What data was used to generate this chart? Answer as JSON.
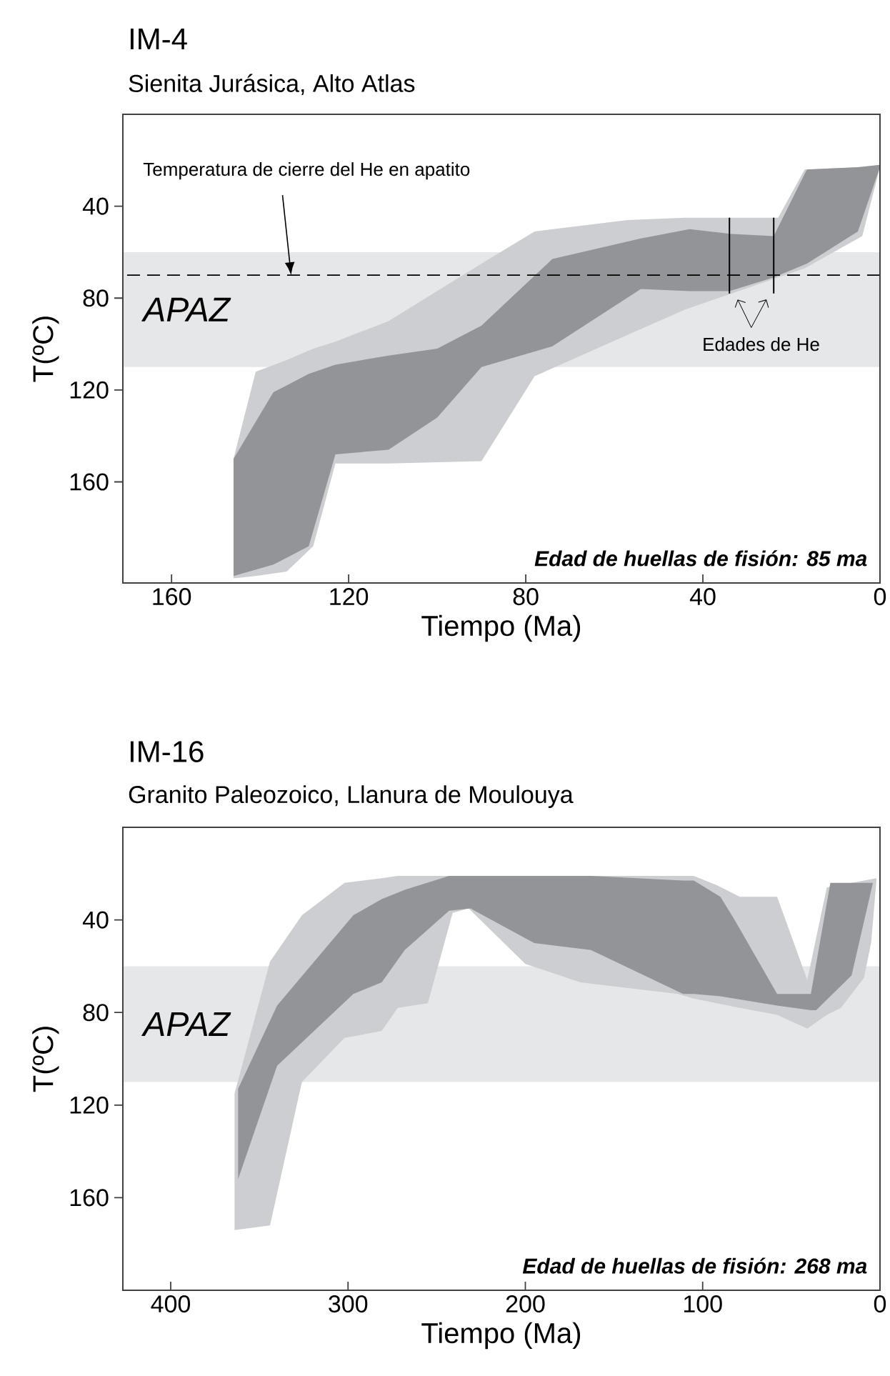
{
  "chart_data": [
    {
      "type": "area",
      "title": "IM-4",
      "subtitle": "Sienita Jurásica, Alto Atlas",
      "xlabel": "Tiempo (Ma)",
      "ylabel": "T(ºC)",
      "xlim": [
        171,
        0
      ],
      "ylim": [
        204,
        0
      ],
      "xticks": [
        160,
        120,
        80,
        40,
        0
      ],
      "yticks": [
        40,
        80,
        120,
        160
      ],
      "bands": [
        {
          "axis": "y",
          "from": 60,
          "to": 110,
          "label": "APAZ",
          "color": "#e6e7e8"
        }
      ],
      "ref_lines": [
        {
          "axis": "y",
          "value": 70,
          "color": "#000000",
          "line_style": "dashed"
        }
      ],
      "annotations": [
        {
          "text": "Temperatura de cierre del He en apatito",
          "x": 133,
          "y": 70
        },
        "Edades de He",
        "Edad de huellas de fisión: 85 ma"
      ],
      "series": [
        {
          "color": "#cdced1",
          "x": [
            146,
            141,
            134,
            128,
            123,
            111,
            90,
            78,
            57,
            44,
            23,
            17,
            4,
            0,
            0,
            4,
            17,
            23,
            44,
            57,
            78,
            90,
            111,
            123,
            128,
            134,
            141,
            146
          ],
          "values": [
            150,
            112,
            107,
            102,
            99,
            90,
            65,
            51,
            46,
            45,
            45,
            24,
            23,
            22,
            23,
            53,
            67,
            71,
            85,
            96,
            114,
            151,
            152,
            152,
            188,
            199,
            201,
            202
          ]
        },
        {
          "color": "#939497",
          "x": [
            146,
            137,
            134,
            129,
            123,
            111,
            100,
            90,
            74,
            54,
            43,
            34,
            24,
            16.5,
            5,
            0,
            0,
            5,
            16.5,
            24,
            34,
            43,
            54,
            74,
            90,
            100,
            111,
            123,
            129,
            134,
            137,
            146
          ],
          "values": [
            150,
            121,
            118,
            113,
            109,
            105,
            102,
            92,
            63,
            54,
            50,
            52,
            53,
            24,
            23,
            22,
            23,
            51,
            65,
            71,
            77,
            77,
            76,
            101,
            110,
            132,
            146,
            148,
            188,
            193,
            196,
            201
          ]
        },
        {
          "type": "line",
          "color": "#000000",
          "x": [
            34,
            34
          ],
          "values": [
            45,
            78
          ]
        },
        {
          "type": "line",
          "color": "#000000",
          "x": [
            24,
            24
          ],
          "values": [
            45,
            78
          ]
        }
      ]
    },
    {
      "type": "area",
      "title": "IM-16",
      "subtitle": "Granito Paleozoico, Llanura de Moulouya",
      "xlabel": "Tiempo (Ma)",
      "ylabel": "T(ºC)",
      "xlim": [
        427,
        0
      ],
      "ylim": [
        200,
        0
      ],
      "xticks": [
        400,
        300,
        200,
        100,
        0
      ],
      "yticks": [
        40,
        80,
        120,
        160
      ],
      "bands": [
        {
          "axis": "y",
          "from": 60,
          "to": 110,
          "label": "APAZ",
          "color": "#e6e7e8"
        }
      ],
      "annotations": [
        "Edad de huellas de fisión: 268 ma"
      ],
      "series": [
        {
          "color": "#cdced1",
          "x": [
            364,
            344,
            326,
            302,
            281,
            272,
            256,
            115,
            105,
            92,
            79,
            58,
            41,
            30,
            2,
            2,
            5,
            9,
            22,
            30,
            41,
            58,
            79,
            92,
            105,
            114,
            169,
            200,
            232,
            241,
            255,
            272,
            281,
            302,
            326,
            344,
            364
          ],
          "values": [
            115,
            58,
            38,
            24,
            22,
            21,
            21,
            21,
            21,
            25,
            30,
            30,
            66,
            26,
            22,
            23,
            50,
            65,
            78,
            81,
            87,
            81,
            78,
            76,
            74,
            72,
            67,
            59,
            35,
            37,
            76,
            78,
            88,
            91,
            110,
            172,
            174
          ]
        },
        {
          "color": "#939497",
          "x": [
            362,
            340,
            297,
            281,
            268,
            243,
            232,
            196,
            163,
            111,
            105,
            90,
            82,
            58,
            39,
            36,
            28,
            17,
            4,
            4,
            16,
            28,
            36,
            39,
            58,
            82,
            90,
            105,
            111,
            163,
            195,
            231,
            243,
            268,
            281,
            297,
            340,
            362
          ],
          "values": [
            113,
            77,
            38,
            31,
            27,
            21,
            21,
            21,
            21,
            23,
            23,
            30,
            40,
            72,
            72,
            59,
            24,
            24,
            24,
            24,
            64,
            73,
            79,
            79,
            77,
            74,
            73,
            72,
            72,
            53,
            50,
            35,
            36,
            53,
            67,
            72,
            103,
            152
          ]
        }
      ]
    }
  ]
}
